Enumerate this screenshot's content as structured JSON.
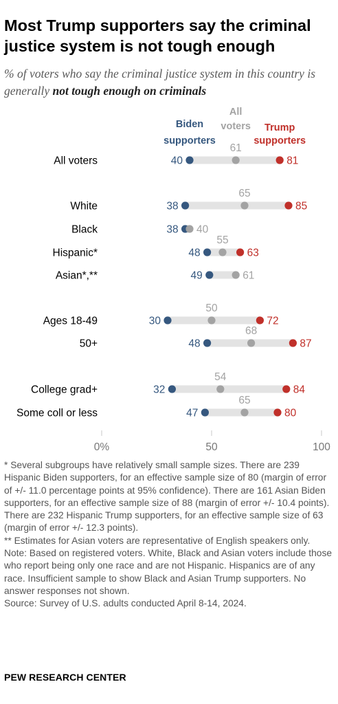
{
  "title": "Most Trump supporters say the criminal justice system is not tough enough",
  "subtitle_prefix": "% of voters who say the criminal justice system in this country is generally ",
  "subtitle_emphasis": "not tough enough on criminals",
  "colors": {
    "biden": "#36587f",
    "all": "#a3a3a3",
    "trump": "#c0302a",
    "track": "#e3e3e3",
    "axis_text": "#777777"
  },
  "chart_data": {
    "type": "dot",
    "xlim": [
      0,
      100
    ],
    "x_ticks": [
      "0%",
      "50",
      "100"
    ],
    "series": [
      {
        "key": "biden",
        "name": "Biden supporters"
      },
      {
        "key": "all",
        "name": "All voters"
      },
      {
        "key": "trump",
        "name": "Trump supporters"
      }
    ],
    "rows": [
      {
        "label": "All voters",
        "biden": 40,
        "all": 61,
        "trump": 81
      },
      {
        "label": "White",
        "biden": 38,
        "all": 65,
        "trump": 85
      },
      {
        "label": "Black",
        "biden": 38,
        "all": 40,
        "trump": null
      },
      {
        "label": "Hispanic*",
        "biden": 48,
        "all": 55,
        "trump": 63
      },
      {
        "label": "Asian*,**",
        "biden": 49,
        "all": 61,
        "trump": null
      },
      {
        "label": "Ages 18-49",
        "biden": 30,
        "all": 50,
        "trump": 72
      },
      {
        "label": "50+",
        "biden": 48,
        "all": 68,
        "trump": 87
      },
      {
        "label": "College grad+",
        "biden": 32,
        "all": 54,
        "trump": 84
      },
      {
        "label": "Some coll or less",
        "biden": 47,
        "all": 65,
        "trump": 80
      }
    ]
  },
  "notes": [
    "* Several subgroups have relatively small sample sizes. There are 239 Hispanic Biden supporters, for an effective sample size of 80 (margin of error of +/- 11.0 percentage points at 95% confidence). There are 161 Asian Biden supporters, for an effective sample size of 88 (margin of error +/- 10.4 points). There are 232 Hispanic Trump supporters, for an effective sample size of 63 (margin of error +/- 12.3 points).",
    "** Estimates for Asian voters are representative of English speakers only.",
    "Note: Based on registered voters. White, Black and Asian voters include those who report being only one race and are not Hispanic. Hispanics are of any race. Insufficient sample to show Black and Asian Trump supporters. No answer responses not shown.",
    "Source: Survey of U.S. adults conducted April 8-14, 2024."
  ],
  "source_org": "PEW RESEARCH CENTER"
}
